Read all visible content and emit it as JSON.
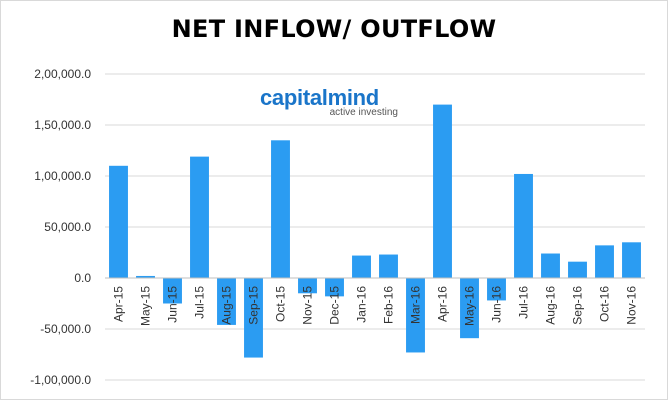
{
  "colors": {
    "bar": "#2b9cf2",
    "grid": "#d9d9d9",
    "axis": "#bfbfbf"
  },
  "logo": {
    "name": "capitalmind",
    "tagline": "active investing"
  },
  "chart_data": {
    "type": "bar",
    "title": "NET INFLOW/ OUTFLOW",
    "xlabel": "",
    "ylabel": "",
    "ylim": [
      -100000,
      200000
    ],
    "yticks": [
      200000,
      150000,
      100000,
      50000,
      0,
      -50000,
      -100000
    ],
    "ytick_labels": [
      "2,00,000.0",
      "1,50,000.0",
      "1,00,000.0",
      "50,000.0",
      "0.0",
      "-50,000.0",
      "-1,00,000.0"
    ],
    "grid": true,
    "legend": "none",
    "categories": [
      "Apr-15",
      "May-15",
      "Jun-15",
      "Jul-15",
      "Aug-15",
      "Sep-15",
      "Oct-15",
      "Nov-15",
      "Dec-15",
      "Jan-16",
      "Feb-16",
      "Mar-16",
      "Apr-16",
      "May-16",
      "Jun-16",
      "Jul-16",
      "Aug-16",
      "Sep-16",
      "Oct-16",
      "Nov-16"
    ],
    "values": [
      110000,
      2000,
      -25000,
      119000,
      -46000,
      -78000,
      135000,
      -15000,
      -18000,
      22000,
      23000,
      -73000,
      170000,
      -59000,
      -22000,
      102000,
      24000,
      16000,
      32000,
      35000
    ]
  }
}
